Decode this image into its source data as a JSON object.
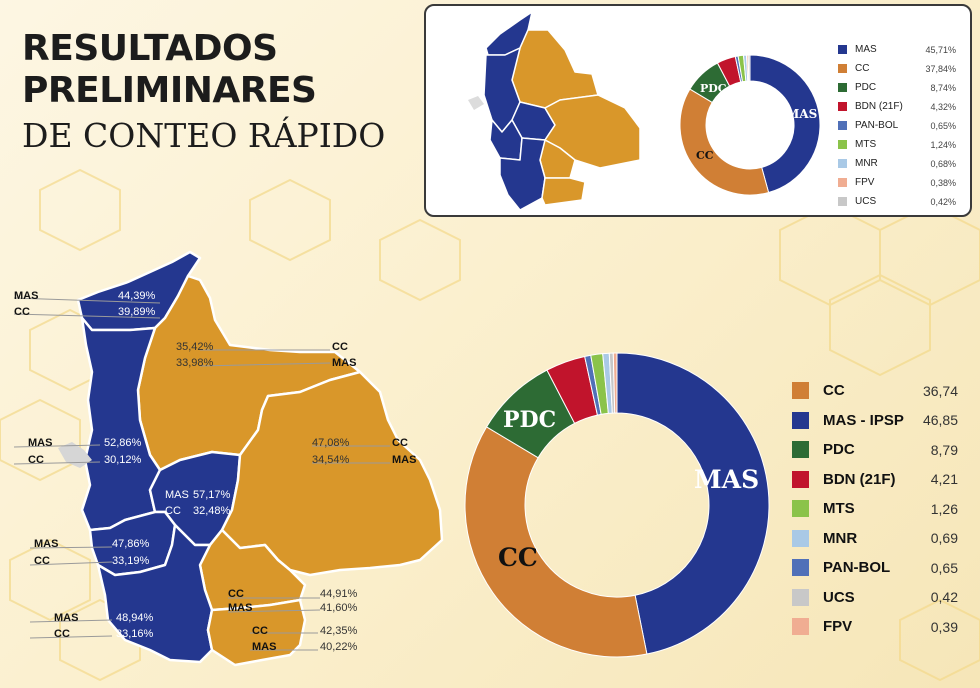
{
  "title": {
    "line1": "RESULTADOS",
    "line2": "PRELIMINARES",
    "line3": "DE CONTEO RÁPIDO"
  },
  "colors": {
    "MAS": "#24378f",
    "CC": "#d9972a",
    "CC_donut": "#d07f35",
    "PDC": "#2d6b34",
    "BDN": "#c1142c",
    "PAN_BOL": "#5070b8",
    "MTS": "#8bc34a",
    "MNR": "#a9c9e6",
    "FPV": "#f0ad92",
    "UCS": "#c8c8c8"
  },
  "inset": {
    "legend": [
      {
        "label": "MAS",
        "value": "45,71%"
      },
      {
        "label": "CC",
        "value": "37,84%"
      },
      {
        "label": "PDC",
        "value": "8,74%"
      },
      {
        "label": "BDN (21F)",
        "value": "4,32%"
      },
      {
        "label": "PAN-BOL",
        "value": "0,65%"
      },
      {
        "label": "MTS",
        "value": "1,24%"
      },
      {
        "label": "MNR",
        "value": "0,68%"
      },
      {
        "label": "FPV",
        "value": "0,38%"
      },
      {
        "label": "UCS",
        "value": "0,42%"
      }
    ],
    "donut_labels": {
      "mas": "MAS",
      "cc": "CC",
      "pdc": "PDC"
    }
  },
  "main": {
    "legend": [
      {
        "label": "CC",
        "value": "36,74"
      },
      {
        "label": "MAS - IPSP",
        "value": "46,85"
      },
      {
        "label": "PDC",
        "value": "8,79"
      },
      {
        "label": "BDN (21F)",
        "value": "4,21"
      },
      {
        "label": "MTS",
        "value": "1,26"
      },
      {
        "label": "MNR",
        "value": "0,69"
      },
      {
        "label": "PAN-BOL",
        "value": "0,65"
      },
      {
        "label": "UCS",
        "value": "0,42"
      },
      {
        "label": "FPV",
        "value": "0,39"
      }
    ],
    "donut_labels": {
      "mas": "MAS",
      "cc": "CC",
      "pdc": "PDC"
    }
  },
  "departments": [
    {
      "party1": "MAS",
      "pct1": "44,39%",
      "party2": "CC",
      "pct2": "39,89%"
    },
    {
      "party1": "CC",
      "pct1": "35,42%",
      "party2": "MAS",
      "pct2": "33,98%"
    },
    {
      "party1": "CC",
      "pct1": "47,08%",
      "party2": "MAS",
      "pct2": "34,54%"
    },
    {
      "party1": "MAS",
      "pct1": "52,86%",
      "party2": "CC",
      "pct2": "30,12%"
    },
    {
      "party1": "MAS",
      "pct1": "57,17%",
      "party2": "CC",
      "pct2": "32,48%"
    },
    {
      "party1": "MAS",
      "pct1": "47,86%",
      "party2": "CC",
      "pct2": "33,19%"
    },
    {
      "party1": "CC",
      "pct1": "44,91%",
      "party2": "MAS",
      "pct2": "41,60%"
    },
    {
      "party1": "MAS",
      "pct1": "48,94%",
      "party2": "CC",
      "pct2": "33,16%"
    },
    {
      "party1": "CC",
      "pct1": "42,35%",
      "party2": "MAS",
      "pct2": "40,22%"
    }
  ],
  "chart_data": [
    {
      "type": "pie",
      "title": "",
      "categories": [
        "MAS",
        "CC",
        "PDC",
        "BDN (21F)",
        "PAN-BOL",
        "MTS",
        "MNR",
        "FPV",
        "UCS"
      ],
      "values": [
        45.71,
        37.84,
        8.74,
        4.32,
        0.65,
        1.24,
        0.68,
        0.38,
        0.42
      ],
      "legend": "right"
    },
    {
      "type": "pie",
      "title": "",
      "categories": [
        "CC",
        "MAS - IPSP",
        "PDC",
        "BDN (21F)",
        "MTS",
        "MNR",
        "PAN-BOL",
        "UCS",
        "FPV"
      ],
      "values": [
        36.74,
        46.85,
        8.79,
        4.21,
        1.26,
        0.69,
        0.65,
        0.42,
        0.39
      ],
      "legend": "right"
    }
  ]
}
